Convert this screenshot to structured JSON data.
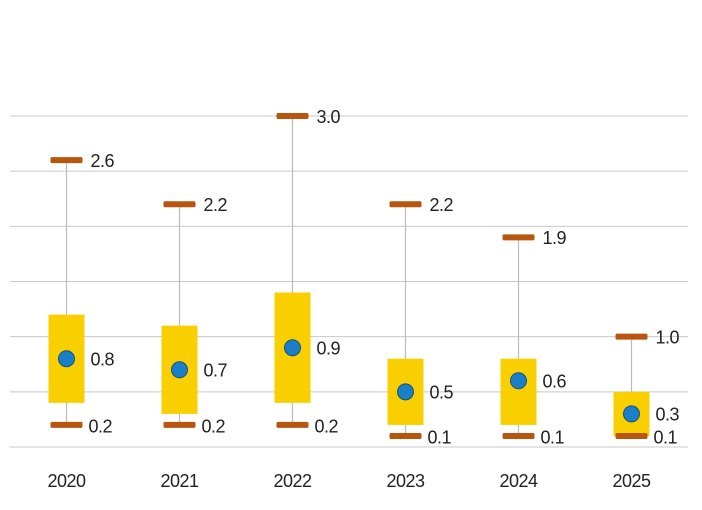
{
  "chart_data": {
    "type": "box",
    "categories": [
      "2020",
      "2021",
      "2022",
      "2023",
      "2024",
      "2025"
    ],
    "max": {
      "values": [
        2.6,
        2.2,
        3.0,
        2.2,
        1.9,
        1.0
      ],
      "value_labels": [
        "2.6",
        "2.2",
        "3.0",
        "2.2",
        "1.9",
        "1.0"
      ],
      "color": "#b8560f"
    },
    "mean": {
      "values": [
        0.8,
        0.7,
        0.9,
        0.5,
        0.6,
        0.3
      ],
      "value_labels": [
        "0.8",
        "0.7",
        "0.9",
        "0.5",
        "0.6",
        "0.3"
      ],
      "color": "#1a7fc6"
    },
    "min": {
      "values": [
        0.2,
        0.2,
        0.2,
        0.1,
        0.1,
        0.1
      ],
      "value_labels": [
        "0.2",
        "0.2",
        "0.2",
        "0.1",
        "0.1",
        "0.1"
      ],
      "color": "#b8560f"
    },
    "box": {
      "q1": [
        0.4,
        0.3,
        0.4,
        0.2,
        0.2,
        0.1
      ],
      "q3": [
        1.2,
        1.1,
        1.4,
        0.8,
        0.8,
        0.5
      ],
      "color": "#f9cf00"
    },
    "ylim": [
      0,
      3
    ],
    "yticks": [
      0,
      0.5,
      1,
      1.5,
      2,
      2.5,
      3
    ],
    "grid": true
  }
}
